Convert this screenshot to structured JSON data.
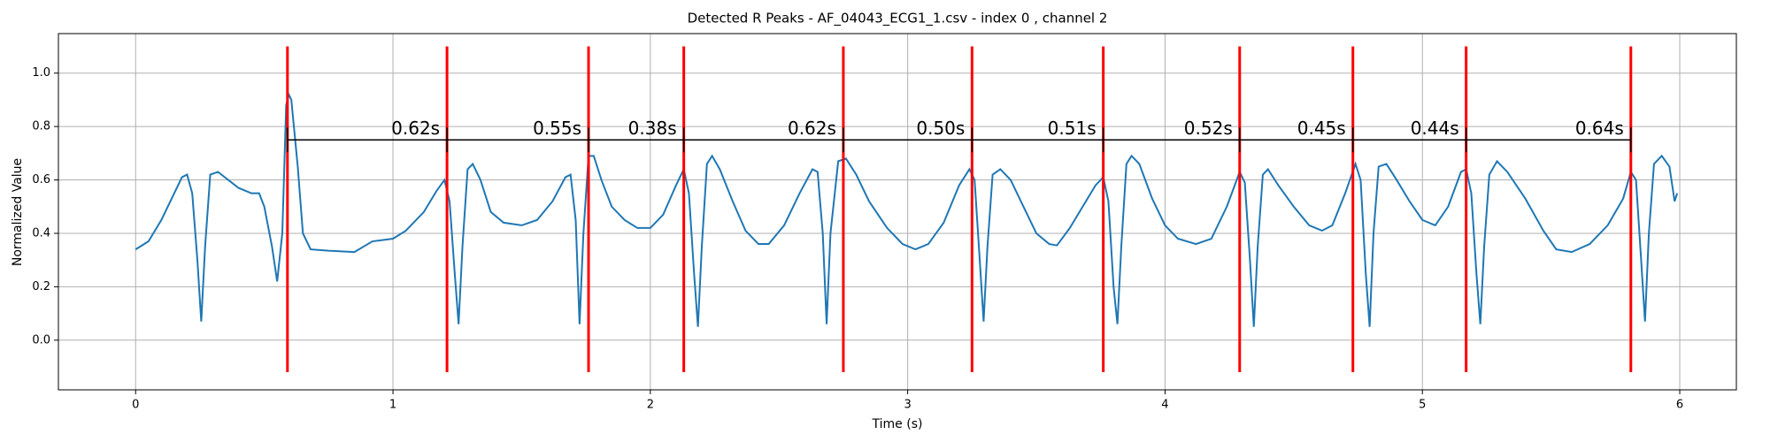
{
  "chart_data": {
    "type": "line",
    "title": "Detected R Peaks - AF_04043_ECG1_1.csv - index 0 , channel 2",
    "x_label": "Time (s)",
    "y_label": "Normalized Value",
    "color": "#1f77b4",
    "grid": true,
    "xlim": [
      -0.3,
      6.22
    ],
    "ylim": [
      -0.186,
      1.148
    ],
    "xticks": [
      0,
      1,
      2,
      3,
      4,
      5,
      6
    ],
    "yticks": [
      {
        "value": 0,
        "label": "0.0"
      },
      0.2,
      0.4,
      0.6,
      0.8,
      {
        "value": 1,
        "label": "1.0"
      }
    ],
    "x": [
      0.0,
      0.05,
      0.1,
      0.15,
      0.18,
      0.2,
      0.22,
      0.24,
      0.255,
      0.27,
      0.29,
      0.32,
      0.36,
      0.4,
      0.45,
      0.48,
      0.5,
      0.53,
      0.55,
      0.57,
      0.585,
      0.595,
      0.605,
      0.63,
      0.65,
      0.68,
      0.75,
      0.85,
      0.92,
      1.0,
      1.05,
      1.12,
      1.17,
      1.2,
      1.22,
      1.24,
      1.255,
      1.27,
      1.29,
      1.31,
      1.34,
      1.38,
      1.43,
      1.5,
      1.56,
      1.62,
      1.67,
      1.69,
      1.71,
      1.725,
      1.74,
      1.76,
      1.78,
      1.81,
      1.85,
      1.9,
      1.95,
      2.0,
      2.05,
      2.1,
      2.13,
      2.15,
      2.17,
      2.185,
      2.2,
      2.22,
      2.24,
      2.27,
      2.32,
      2.37,
      2.42,
      2.46,
      2.52,
      2.58,
      2.63,
      2.65,
      2.67,
      2.685,
      2.7,
      2.73,
      2.76,
      2.8,
      2.85,
      2.92,
      2.98,
      3.03,
      3.08,
      3.14,
      3.2,
      3.24,
      3.26,
      3.28,
      3.295,
      3.31,
      3.33,
      3.36,
      3.4,
      3.45,
      3.5,
      3.55,
      3.58,
      3.63,
      3.68,
      3.73,
      3.76,
      3.78,
      3.8,
      3.815,
      3.83,
      3.85,
      3.87,
      3.9,
      3.95,
      4.0,
      4.05,
      4.12,
      4.18,
      4.24,
      4.29,
      4.31,
      4.33,
      4.345,
      4.36,
      4.38,
      4.4,
      4.44,
      4.5,
      4.56,
      4.61,
      4.65,
      4.7,
      4.74,
      4.76,
      4.78,
      4.795,
      4.81,
      4.83,
      4.86,
      4.9,
      4.95,
      5.0,
      5.05,
      5.1,
      5.15,
      5.17,
      5.19,
      5.21,
      5.225,
      5.24,
      5.26,
      5.29,
      5.33,
      5.4,
      5.47,
      5.52,
      5.58,
      5.65,
      5.72,
      5.78,
      5.81,
      5.83,
      5.85,
      5.865,
      5.88,
      5.9,
      5.93,
      5.96,
      5.98,
      5.99
    ],
    "values": [
      0.34,
      0.37,
      0.45,
      0.55,
      0.61,
      0.62,
      0.55,
      0.3,
      0.07,
      0.35,
      0.62,
      0.63,
      0.6,
      0.57,
      0.55,
      0.55,
      0.5,
      0.35,
      0.22,
      0.4,
      0.88,
      0.92,
      0.9,
      0.65,
      0.4,
      0.34,
      0.335,
      0.33,
      0.37,
      0.38,
      0.41,
      0.48,
      0.56,
      0.6,
      0.52,
      0.25,
      0.06,
      0.35,
      0.64,
      0.66,
      0.6,
      0.48,
      0.44,
      0.43,
      0.45,
      0.52,
      0.61,
      0.62,
      0.45,
      0.06,
      0.4,
      0.69,
      0.69,
      0.6,
      0.5,
      0.45,
      0.42,
      0.42,
      0.47,
      0.58,
      0.64,
      0.55,
      0.25,
      0.05,
      0.35,
      0.66,
      0.69,
      0.64,
      0.52,
      0.41,
      0.36,
      0.36,
      0.43,
      0.55,
      0.64,
      0.63,
      0.4,
      0.06,
      0.4,
      0.67,
      0.68,
      0.62,
      0.52,
      0.42,
      0.36,
      0.34,
      0.36,
      0.44,
      0.58,
      0.64,
      0.6,
      0.3,
      0.07,
      0.35,
      0.62,
      0.64,
      0.6,
      0.5,
      0.4,
      0.36,
      0.355,
      0.42,
      0.5,
      0.58,
      0.61,
      0.52,
      0.2,
      0.06,
      0.35,
      0.66,
      0.69,
      0.66,
      0.53,
      0.43,
      0.38,
      0.36,
      0.38,
      0.5,
      0.63,
      0.59,
      0.3,
      0.05,
      0.35,
      0.62,
      0.64,
      0.58,
      0.5,
      0.43,
      0.41,
      0.43,
      0.55,
      0.66,
      0.6,
      0.25,
      0.05,
      0.4,
      0.65,
      0.66,
      0.6,
      0.52,
      0.45,
      0.43,
      0.5,
      0.63,
      0.64,
      0.55,
      0.25,
      0.06,
      0.35,
      0.62,
      0.67,
      0.63,
      0.53,
      0.41,
      0.34,
      0.33,
      0.36,
      0.43,
      0.53,
      0.63,
      0.6,
      0.3,
      0.07,
      0.4,
      0.66,
      0.69,
      0.65,
      0.52,
      0.55
    ],
    "vlines": {
      "x": [
        0.59,
        1.21,
        1.76,
        2.13,
        2.75,
        3.25,
        3.76,
        4.29,
        4.73,
        5.17,
        5.81
      ],
      "ymin": -0.12,
      "ymax": 1.1,
      "color": "#ff0000"
    },
    "intervals": {
      "y": 0.75,
      "color": "#000000",
      "values": [
        0.62,
        0.55,
        0.38,
        0.62,
        0.5,
        0.51,
        0.52,
        0.45,
        0.44,
        0.64
      ],
      "value_labels": [
        "0.62s",
        "0.55s",
        "0.38s",
        "0.62s",
        "0.50s",
        "0.51s",
        "0.52s",
        "0.45s",
        "0.44s",
        "0.64s"
      ]
    }
  }
}
